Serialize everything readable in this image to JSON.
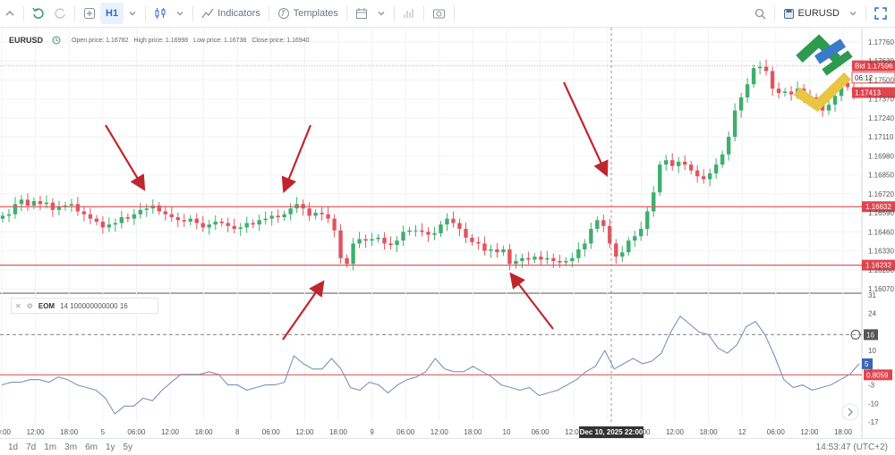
{
  "toolbar": {
    "indicators_label": "Indicators",
    "templates_label": "Templates",
    "timeframe": "H1",
    "symbol": "EURUSD"
  },
  "legend": {
    "symbol": "EURUSD",
    "open": "Open price: 1.16782",
    "high": "High price: 1.16998",
    "low": "Low price: 1.16738",
    "close": "Close price: 1.16940"
  },
  "indicator": {
    "name": "EOM",
    "params": "14 100000000000 16"
  },
  "footer": {
    "timeframes": [
      "1d",
      "7d",
      "1m",
      "3m",
      "6m",
      "1y",
      "5y"
    ],
    "clock": "14:53:47 (UTC+2)"
  },
  "chart_data": [
    {
      "type": "candlestick",
      "symbol": "EURUSD",
      "timeframe": "H1",
      "y_ticks": [
        1.1776,
        1.1763,
        1.175,
        1.1737,
        1.1724,
        1.1711,
        1.1698,
        1.1685,
        1.1672,
        1.1659,
        1.1646,
        1.1633,
        1.162,
        1.1607
      ],
      "y_tick_labels": [
        "1.17760",
        "1.17630",
        "1.17500",
        "1.17370",
        "1.17240",
        "1.17110",
        "1.16980",
        "1.16850",
        "1.16720",
        "1.16590",
        "1.16460",
        "1.16330",
        "1.16200",
        "1.16070"
      ],
      "ylim": [
        1.1604,
        1.1782
      ],
      "x_tick_labels": [
        "00:00",
        "12:00",
        "18:00",
        "5",
        "06:00",
        "12:00",
        "18:00",
        "8",
        "06:00",
        "12:00",
        "18:00",
        "9",
        "06:00",
        "12:00",
        "18:00",
        "10",
        "06:00",
        "12:00",
        "Dec 10, 2025 22:00",
        "06:00",
        "12:00",
        "18:00",
        "12",
        "06:00",
        "12:00",
        "18:00"
      ],
      "horizontal_lines": [
        {
          "value": 1.16632,
          "label": "1.16632",
          "color": "#e05a5a"
        },
        {
          "value": 1.16232,
          "label": "1.16232",
          "color": "#e05a5a"
        }
      ],
      "price_tags": [
        {
          "label": "Bid 1.17596",
          "value": 1.17596
        },
        {
          "label": "06:12",
          "value": 1.17515
        },
        {
          "label": "1.17413",
          "value": 1.17413
        }
      ],
      "crosshair": {
        "label": "Dec 10, 2025 22:00"
      },
      "close_series": [
        1.1657,
        1.1658,
        1.1665,
        1.1668,
        1.1664,
        1.1667,
        1.1665,
        1.1666,
        1.1661,
        1.1663,
        1.1664,
        1.1665,
        1.166,
        1.1658,
        1.1655,
        1.1653,
        1.1649,
        1.1651,
        1.1652,
        1.1656,
        1.1655,
        1.1658,
        1.1661,
        1.1662,
        1.1664,
        1.166,
        1.1658,
        1.1656,
        1.1654,
        1.1653,
        1.1655,
        1.1652,
        1.1649,
        1.1651,
        1.1653,
        1.1652,
        1.165,
        1.1648,
        1.1649,
        1.1652,
        1.1651,
        1.1654,
        1.1655,
        1.1657,
        1.1656,
        1.1658,
        1.1662,
        1.1665,
        1.1662,
        1.1657,
        1.1659,
        1.1658,
        1.1655,
        1.1647,
        1.1628,
        1.1624,
        1.1638,
        1.1641,
        1.164,
        1.1641,
        1.1642,
        1.1638,
        1.1637,
        1.164,
        1.1646,
        1.1647,
        1.1647,
        1.1646,
        1.1644,
        1.1645,
        1.1651,
        1.1655,
        1.1652,
        1.1648,
        1.1642,
        1.1639,
        1.1638,
        1.1633,
        1.1634,
        1.1632,
        1.1634,
        1.1624,
        1.1626,
        1.1628,
        1.1627,
        1.1629,
        1.1627,
        1.1628,
        1.1626,
        1.1625,
        1.1626,
        1.1628,
        1.1634,
        1.1638,
        1.1648,
        1.1654,
        1.165,
        1.1638,
        1.1629,
        1.1632,
        1.164,
        1.1643,
        1.1648,
        1.166,
        1.1673,
        1.1692,
        1.1695,
        1.1691,
        1.1694,
        1.1692,
        1.1688,
        1.1684,
        1.1682,
        1.1686,
        1.1692,
        1.1699,
        1.1711,
        1.1729,
        1.1738,
        1.1747,
        1.1758,
        1.1759,
        1.1756,
        1.1744,
        1.1741,
        1.1742,
        1.174,
        1.1744,
        1.1739,
        1.1738,
        1.1734,
        1.1729,
        1.1733,
        1.1739,
        1.1748,
        1.1745,
        1.1741
      ]
    },
    {
      "type": "line",
      "name": "EOM",
      "y_ticks": [
        31,
        24,
        17,
        10,
        3,
        -3,
        -10,
        -17
      ],
      "y_tick_labels": [
        "31",
        "24",
        "17",
        "10",
        "3",
        "-3",
        "-10",
        "-17"
      ],
      "ylim": [
        -17,
        31
      ],
      "horizontal_lines": [
        {
          "value": 0.8059,
          "label": "0.8059",
          "color": "#e05a5a"
        },
        {
          "value": 16,
          "label": "16",
          "color": "#999999",
          "dashed": true
        }
      ],
      "current_value_label": "5",
      "values": [
        -3,
        -2,
        -2,
        -1,
        -1,
        -2,
        0,
        -1,
        -3,
        -4,
        -5,
        -8,
        -14,
        -11,
        -11,
        -8,
        -9,
        -5,
        -2,
        1,
        1,
        1,
        2,
        1,
        -3,
        -3,
        -5,
        -4,
        -3,
        -3,
        -2,
        8,
        5,
        3,
        3,
        7,
        3,
        -4,
        -5,
        -2,
        -3,
        -6,
        -3,
        -1,
        0,
        2,
        7,
        3,
        2,
        2,
        4,
        2,
        0,
        -3,
        -4,
        -5,
        -4,
        -7,
        -6,
        -5,
        -3,
        -1,
        2,
        4,
        10,
        3,
        5,
        7,
        5,
        6,
        9,
        17,
        23,
        20,
        17,
        16,
        11,
        9,
        12,
        19,
        21,
        16,
        8,
        -1,
        -4,
        -3,
        -5,
        -4,
        -3,
        -1,
        1,
        5
      ]
    }
  ]
}
